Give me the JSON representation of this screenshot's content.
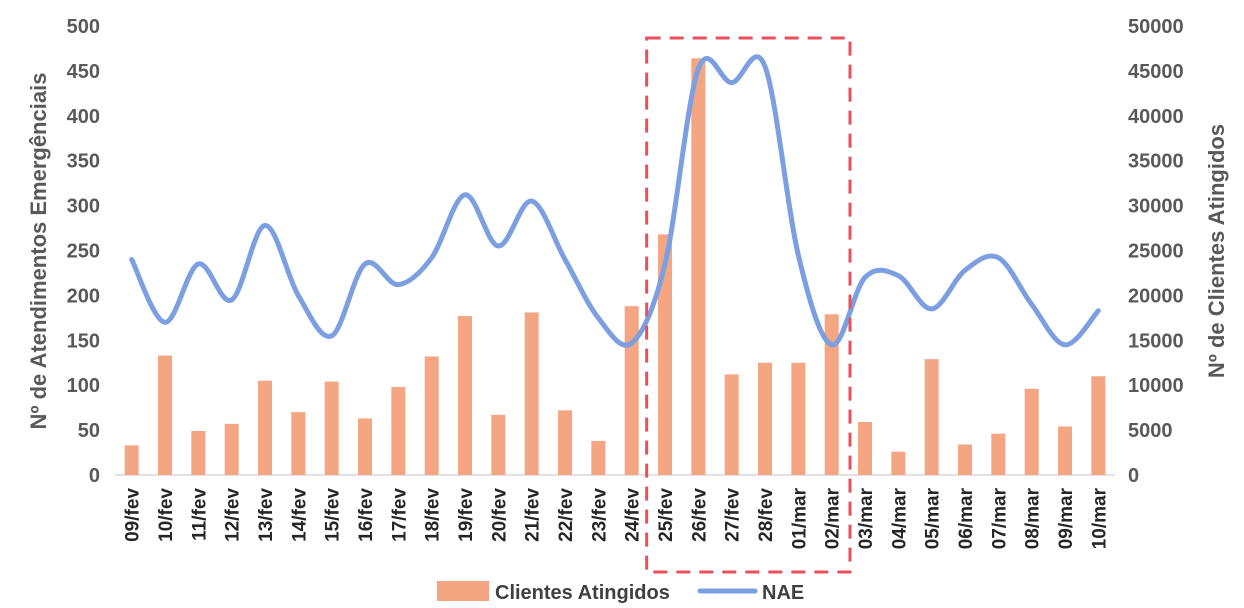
{
  "chart_data": {
    "type": "bar",
    "categories": [
      "09/fev",
      "10/fev",
      "11/fev",
      "12/fev",
      "13/fev",
      "14/fev",
      "15/fev",
      "16/fev",
      "17/fev",
      "18/fev",
      "19/fev",
      "20/fev",
      "21/fev",
      "22/fev",
      "23/fev",
      "24/fev",
      "25/fev",
      "26/fev",
      "27/fev",
      "28/fev",
      "01/mar",
      "02/mar",
      "03/mar",
      "04/mar",
      "05/mar",
      "06/mar",
      "07/mar",
      "08/mar",
      "09/mar",
      "10/mar"
    ],
    "series": [
      {
        "name": "Clientes Atingidos",
        "type": "bar",
        "axis": "right",
        "color": "#F4A582",
        "values": [
          3300,
          13300,
          4900,
          5700,
          10500,
          7000,
          10400,
          6300,
          9800,
          13200,
          17700,
          6700,
          18100,
          7200,
          3800,
          18800,
          26800,
          46400,
          11200,
          12500,
          12500,
          17900,
          5900,
          2600,
          12900,
          3400,
          4600,
          9600,
          5400,
          11000
        ]
      },
      {
        "name": "NAE",
        "type": "line",
        "axis": "left",
        "color": "#7B9FE0",
        "values": [
          240,
          170,
          235,
          195,
          278,
          200,
          155,
          235,
          212,
          242,
          312,
          255,
          305,
          240,
          175,
          147,
          235,
          452,
          437,
          455,
          245,
          145,
          220,
          222,
          185,
          228,
          242,
          190,
          145,
          183
        ]
      }
    ],
    "y_left": {
      "label": "Nº de Atendimentos Emergênciais",
      "min": 0,
      "max": 500,
      "ticks": [
        "0",
        "50",
        "100",
        "150",
        "200",
        "250",
        "300",
        "350",
        "400",
        "450",
        "500"
      ]
    },
    "y_right": {
      "label": "Nº de Clientes Atingidos",
      "min": 0,
      "max": 50000,
      "ticks": [
        "0",
        "5000",
        "10000",
        "15000",
        "20000",
        "25000",
        "30000",
        "35000",
        "40000",
        "45000",
        "50000"
      ]
    },
    "highlight": {
      "from": "25/fev",
      "to": "02/mar",
      "color": "#E8505B",
      "style": "dashed"
    },
    "legend": {
      "placement": "bottom",
      "items": [
        "Clientes Atingidos",
        "NAE"
      ]
    },
    "grid": false
  }
}
